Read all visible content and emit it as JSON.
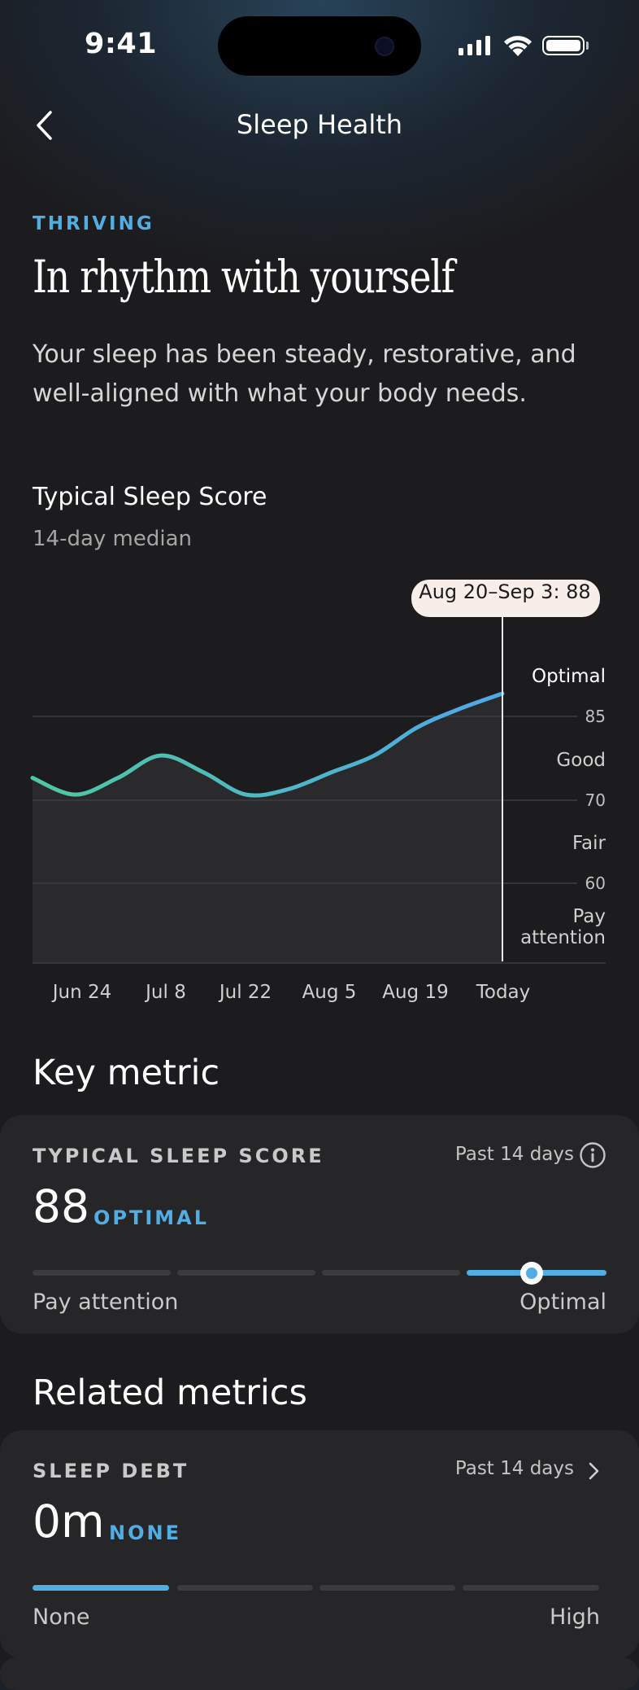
{
  "status_bar": {
    "time": "9:41"
  },
  "nav": {
    "title": "Sleep Health"
  },
  "hero": {
    "kicker": "THRIVING",
    "headline": "In rhythm with yourself",
    "description": "Your sleep has been steady, restorative, and well-aligned with what your body needs."
  },
  "chart_header": {
    "title": "Typical Sleep Score",
    "subtitle": "14-day median"
  },
  "chart_data": {
    "type": "line",
    "title": "Typical Sleep Score",
    "subtitle": "14-day median",
    "x_ticks": [
      "Jun 24",
      "Jul 8",
      "Jul 22",
      "Aug 5",
      "Aug 19",
      "Today"
    ],
    "y_ticks": [
      "85",
      "70",
      "60"
    ],
    "ylim": [
      50,
      100
    ],
    "zones": [
      "Optimal",
      "Good",
      "Fair",
      "Pay attention"
    ],
    "grid": true,
    "series": [
      {
        "points": [
          [
            "Jun 17",
            74
          ],
          [
            "Jun 24",
            71
          ],
          [
            "Jul 1",
            74
          ],
          [
            "Jul 8",
            78
          ],
          [
            "Jul 15",
            75
          ],
          [
            "Jul 22",
            71
          ],
          [
            "Jul 29",
            72
          ],
          [
            "Aug 5",
            75
          ],
          [
            "Aug 12",
            78
          ],
          [
            "Aug 19",
            83
          ],
          [
            "Aug 26",
            86
          ],
          [
            "Today",
            88
          ]
        ]
      }
    ],
    "tooltip": "Aug 20–Sep 3: 88",
    "colors": {
      "line_start": "#4fc8a0",
      "line_end": "#4fa8e8"
    }
  },
  "key_metric": {
    "heading": "Key metric",
    "label": "TYPICAL SLEEP SCORE",
    "period": "Past 14 days",
    "value": "88",
    "tag": "OPTIMAL",
    "scale_left": "Pay attention",
    "scale_right": "Optimal",
    "slider_level": 0.87
  },
  "related": {
    "heading": "Related metrics",
    "sleep_debt": {
      "label": "SLEEP DEBT",
      "period": "Past 14 days",
      "value": "0m",
      "tag": "NONE",
      "scale_left": "None",
      "scale_right": "High",
      "active_segment": 1
    }
  },
  "colors": {
    "accent": "#52ade3",
    "background": "#1c1c1e",
    "card": "#262628"
  }
}
